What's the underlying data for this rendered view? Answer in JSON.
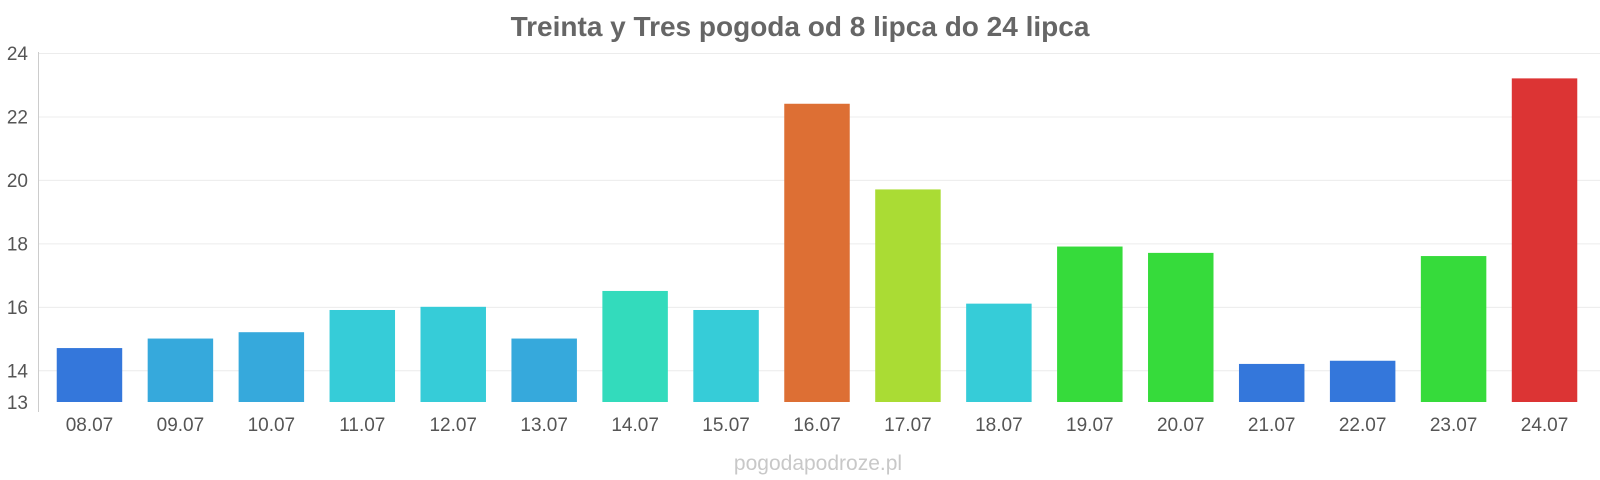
{
  "chart_data": {
    "type": "bar",
    "title": "Treinta y Tres pogoda od 8 lipca do 24 lipca",
    "xlabel": "",
    "ylabel": "",
    "categories": [
      "08.07",
      "09.07",
      "10.07",
      "11.07",
      "12.07",
      "13.07",
      "14.07",
      "15.07",
      "16.07",
      "17.07",
      "18.07",
      "19.07",
      "20.07",
      "21.07",
      "22.07",
      "23.07",
      "24.07"
    ],
    "values": [
      14.7,
      15.0,
      15.2,
      15.9,
      16.0,
      15.0,
      16.5,
      15.9,
      22.4,
      19.7,
      16.1,
      17.9,
      17.7,
      14.2,
      14.3,
      17.6,
      23.2
    ],
    "colors": [
      "#3477db",
      "#36a9dc",
      "#36a9dc",
      "#36ccd8",
      "#36ccd8",
      "#36a9dc",
      "#33dbbc",
      "#36ccd8",
      "#dd6f34",
      "#aadc34",
      "#36ccd8",
      "#36db3b",
      "#36db3b",
      "#3477db",
      "#3477db",
      "#36db3b",
      "#dc3434"
    ],
    "ylim": [
      13,
      24
    ],
    "yticks": [
      13,
      14,
      16,
      18,
      20,
      22,
      24
    ],
    "grid": true,
    "legend": "none"
  },
  "watermark": "pogodapodroze.pl"
}
